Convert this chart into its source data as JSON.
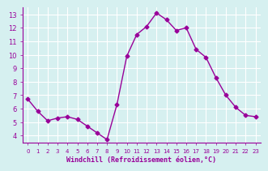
{
  "x": [
    0,
    1,
    2,
    3,
    4,
    5,
    6,
    7,
    8,
    9,
    10,
    11,
    12,
    13,
    14,
    15,
    16,
    17,
    18,
    19,
    20,
    21,
    22,
    23
  ],
  "y": [
    6.7,
    5.8,
    5.1,
    5.3,
    5.4,
    5.2,
    4.7,
    4.2,
    3.7,
    6.3,
    9.9,
    11.5,
    12.1,
    13.1,
    12.6,
    11.8,
    12.0,
    10.4,
    9.8,
    8.3,
    7.0,
    6.1,
    5.5,
    5.4
  ],
  "line_color": "#990099",
  "marker": "D",
  "marker_size": 2.5,
  "bg_color": "#d6f0f0",
  "grid_color": "#ffffff",
  "xlabel": "Windchill (Refroidissement éolien,°C)",
  "xlabel_color": "#990099",
  "tick_color": "#990099",
  "ylim": [
    3.5,
    13.5
  ],
  "xlim": [
    -0.5,
    23.5
  ],
  "yticks": [
    4,
    5,
    6,
    7,
    8,
    9,
    10,
    11,
    12,
    13
  ],
  "xticks": [
    0,
    1,
    2,
    3,
    4,
    5,
    6,
    7,
    8,
    9,
    10,
    11,
    12,
    13,
    14,
    15,
    16,
    17,
    18,
    19,
    20,
    21,
    22,
    23
  ],
  "spine_color": "#990099"
}
